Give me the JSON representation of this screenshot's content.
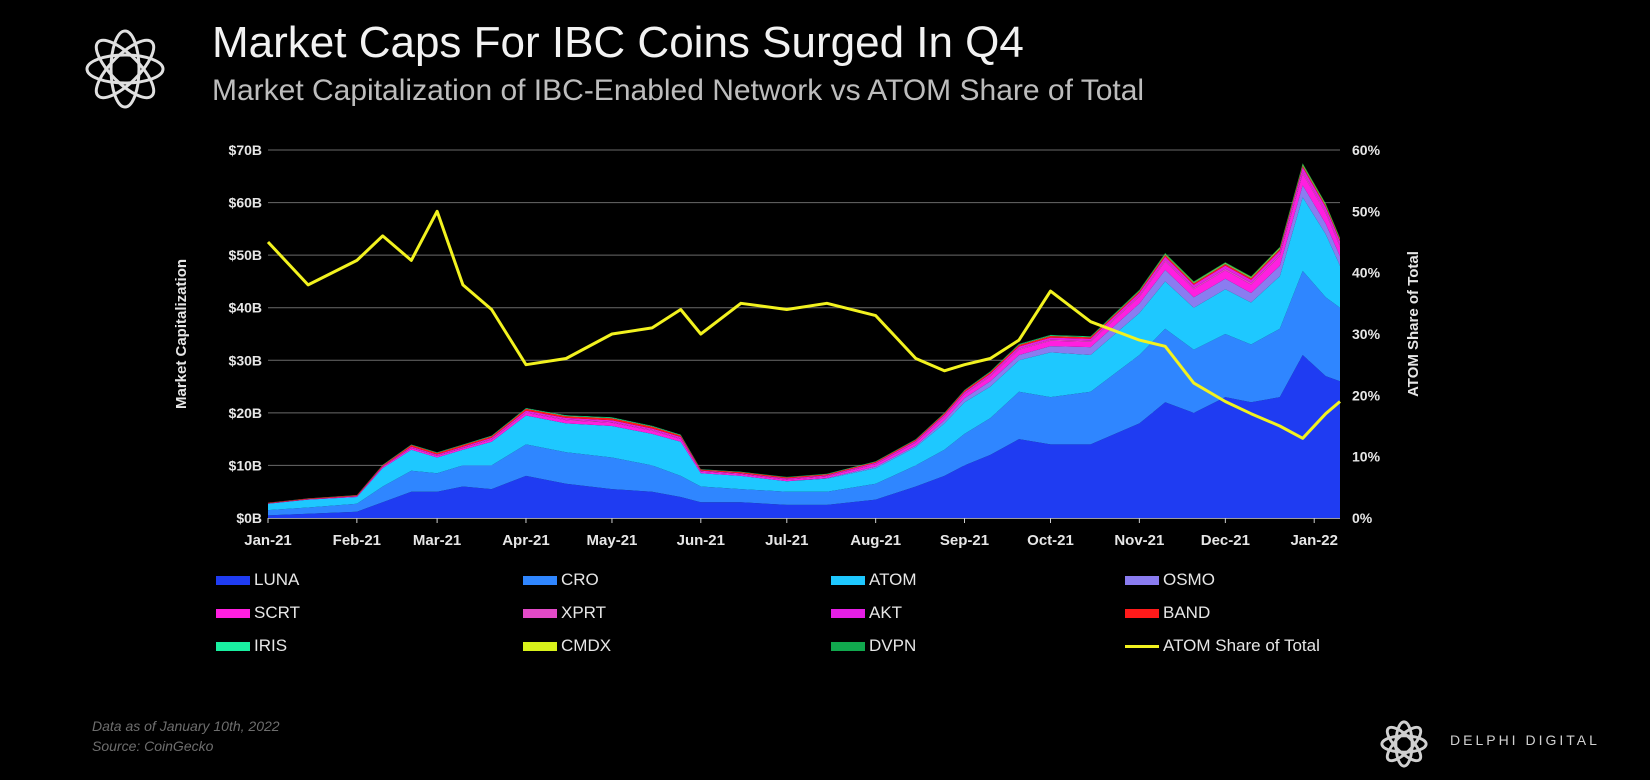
{
  "header": {
    "title": "Market Caps For IBC Coins Surged In Q4",
    "subtitle": "Market Capitalization of IBC-Enabled Network vs ATOM Share of Total"
  },
  "footer": {
    "note_date": "Data as of January 10th, 2022",
    "note_source": "Source: CoinGecko",
    "brand": "DELPHI DIGITAL"
  },
  "legend": {
    "items": [
      {
        "label": "LUNA",
        "color": "#1f3cf2",
        "kind": "area"
      },
      {
        "label": "CRO",
        "color": "#2f86ff",
        "kind": "area"
      },
      {
        "label": "ATOM",
        "color": "#1ec8ff",
        "kind": "area"
      },
      {
        "label": "OSMO",
        "color": "#8a7cf0",
        "kind": "area"
      },
      {
        "label": "SCRT",
        "color": "#ff1fe0",
        "kind": "area"
      },
      {
        "label": "XPRT",
        "color": "#e24ac7",
        "kind": "area"
      },
      {
        "label": "AKT",
        "color": "#e61fe6",
        "kind": "area"
      },
      {
        "label": "BAND",
        "color": "#ff1a1a",
        "kind": "area"
      },
      {
        "label": "IRIS",
        "color": "#19f0a0",
        "kind": "area"
      },
      {
        "label": "CMDX",
        "color": "#d8f21a",
        "kind": "area"
      },
      {
        "label": "DVPN",
        "color": "#11a84e",
        "kind": "area"
      },
      {
        "label": "ATOM Share of Total",
        "color": "#f2f21f",
        "kind": "line"
      }
    ]
  },
  "chart_data": {
    "type": "area",
    "title": "Market Caps For IBC Coins Surged In Q4",
    "subtitle": "Market Capitalization of IBC-Enabled Network vs ATOM Share of Total",
    "ylabel": "Market Capitalization",
    "y2label": "ATOM Share of Total",
    "ylim": [
      0,
      70
    ],
    "y2lim": [
      0,
      60
    ],
    "yticks": [
      "$0B",
      "$10B",
      "$20B",
      "$30B",
      "$40B",
      "$50B",
      "$60B",
      "$70B"
    ],
    "y2ticks": [
      "0%",
      "10%",
      "20%",
      "30%",
      "40%",
      "50%",
      "60%"
    ],
    "xticks": [
      "Jan-21",
      "Feb-21",
      "Mar-21",
      "Apr-21",
      "May-21",
      "Jun-21",
      "Jul-21",
      "Aug-21",
      "Sep-21",
      "Oct-21",
      "Nov-21",
      "Dec-21",
      "Jan-22"
    ],
    "grid": true,
    "legend_position": "bottom",
    "x": [
      "2021-01-01",
      "2021-01-15",
      "2021-02-01",
      "2021-02-10",
      "2021-02-20",
      "2021-03-01",
      "2021-03-10",
      "2021-03-20",
      "2021-04-01",
      "2021-04-15",
      "2021-05-01",
      "2021-05-15",
      "2021-05-25",
      "2021-06-01",
      "2021-06-15",
      "2021-07-01",
      "2021-07-15",
      "2021-08-01",
      "2021-08-15",
      "2021-08-25",
      "2021-09-01",
      "2021-09-10",
      "2021-09-20",
      "2021-10-01",
      "2021-10-15",
      "2021-11-01",
      "2021-11-10",
      "2021-11-20",
      "2021-12-01",
      "2021-12-10",
      "2021-12-20",
      "2021-12-28",
      "2022-01-05",
      "2022-01-10"
    ],
    "series": [
      {
        "name": "LUNA",
        "values": [
          0.5,
          0.8,
          1.2,
          3,
          5,
          5,
          6,
          5.5,
          8,
          6.5,
          5.5,
          5,
          4,
          3,
          3,
          2.5,
          2.5,
          3.5,
          6,
          8,
          10,
          12,
          15,
          14,
          14,
          18,
          22,
          20,
          23,
          22,
          23,
          31,
          27,
          26
        ]
      },
      {
        "name": "CRO",
        "values": [
          1,
          1.2,
          1.5,
          3,
          4,
          3.5,
          4,
          4.5,
          6,
          6,
          6,
          5,
          4,
          3,
          2.5,
          2.5,
          2.5,
          3,
          4,
          5,
          6,
          7,
          9,
          9,
          10,
          13,
          14,
          12,
          12,
          11,
          13,
          16,
          15,
          14
        ]
      },
      {
        "name": "ATOM",
        "values": [
          1.2,
          1.5,
          1.3,
          3.5,
          4,
          3,
          3,
          4.5,
          5.5,
          5.5,
          6,
          6,
          6.5,
          2.5,
          2.5,
          2,
          2.5,
          3,
          3.5,
          5,
          6,
          6,
          6,
          8.5,
          7,
          8,
          9,
          8,
          8.5,
          8,
          10,
          14,
          12,
          8
        ]
      },
      {
        "name": "OSMO",
        "values": [
          0,
          0,
          0,
          0,
          0,
          0,
          0,
          0,
          0,
          0,
          0,
          0,
          0,
          0,
          0,
          0,
          0.1,
          0.3,
          0.3,
          0.6,
          0.8,
          1,
          1,
          1.2,
          1.5,
          1.8,
          2.2,
          2,
          2,
          1.8,
          2,
          2.3,
          2,
          1.8
        ]
      },
      {
        "name": "SCRT",
        "values": [
          0.05,
          0.05,
          0.1,
          0.2,
          0.3,
          0.3,
          0.3,
          0.4,
          0.5,
          0.6,
          0.6,
          0.6,
          0.5,
          0.3,
          0.3,
          0.3,
          0.3,
          0.4,
          0.5,
          0.6,
          0.7,
          0.9,
          1,
          1,
          1,
          1.3,
          1.6,
          1.5,
          1.6,
          1.6,
          1.8,
          2.2,
          2,
          1.8
        ]
      },
      {
        "name": "XPRT",
        "values": [
          0.02,
          0.02,
          0.03,
          0.05,
          0.08,
          0.08,
          0.08,
          0.1,
          0.12,
          0.14,
          0.14,
          0.13,
          0.12,
          0.08,
          0.08,
          0.08,
          0.08,
          0.1,
          0.12,
          0.14,
          0.15,
          0.2,
          0.22,
          0.22,
          0.2,
          0.25,
          0.3,
          0.3,
          0.32,
          0.33,
          0.35,
          0.4,
          0.38,
          0.35
        ]
      },
      {
        "name": "AKT",
        "values": [
          0.02,
          0.03,
          0.05,
          0.1,
          0.2,
          0.2,
          0.2,
          0.25,
          0.3,
          0.3,
          0.35,
          0.3,
          0.3,
          0.15,
          0.15,
          0.15,
          0.15,
          0.2,
          0.25,
          0.3,
          0.3,
          0.35,
          0.4,
          0.4,
          0.4,
          0.5,
          0.6,
          0.55,
          0.6,
          0.6,
          0.7,
          0.8,
          0.75,
          0.7
        ]
      },
      {
        "name": "BAND",
        "values": [
          0.1,
          0.1,
          0.15,
          0.2,
          0.3,
          0.3,
          0.3,
          0.3,
          0.35,
          0.35,
          0.4,
          0.35,
          0.3,
          0.2,
          0.2,
          0.2,
          0.2,
          0.2,
          0.22,
          0.25,
          0.28,
          0.3,
          0.3,
          0.3,
          0.28,
          0.3,
          0.35,
          0.32,
          0.3,
          0.28,
          0.3,
          0.32,
          0.3,
          0.28
        ]
      },
      {
        "name": "IRIS",
        "values": [
          0.02,
          0.02,
          0.03,
          0.05,
          0.08,
          0.08,
          0.08,
          0.08,
          0.1,
          0.1,
          0.1,
          0.1,
          0.1,
          0.05,
          0.05,
          0.05,
          0.05,
          0.06,
          0.07,
          0.08,
          0.08,
          0.09,
          0.1,
          0.1,
          0.1,
          0.1,
          0.12,
          0.1,
          0.1,
          0.1,
          0.11,
          0.12,
          0.11,
          0.1
        ]
      },
      {
        "name": "CMDX",
        "values": [
          0,
          0,
          0,
          0,
          0,
          0,
          0,
          0,
          0,
          0,
          0,
          0,
          0,
          0,
          0,
          0,
          0,
          0,
          0,
          0,
          0,
          0,
          0,
          0,
          0,
          0.05,
          0.08,
          0.1,
          0.1,
          0.12,
          0.15,
          0.15,
          0.14,
          0.13
        ]
      },
      {
        "name": "DVPN",
        "values": [
          0.01,
          0.01,
          0.01,
          0.02,
          0.03,
          0.03,
          0.03,
          0.04,
          0.05,
          0.05,
          0.06,
          0.05,
          0.05,
          0.03,
          0.03,
          0.03,
          0.03,
          0.04,
          0.05,
          0.06,
          0.06,
          0.08,
          0.1,
          0.1,
          0.1,
          0.12,
          0.15,
          0.14,
          0.14,
          0.13,
          0.15,
          0.18,
          0.17,
          0.16
        ]
      },
      {
        "name": "ATOM Share of Total",
        "axis": "right",
        "values": [
          45,
          38,
          42,
          46,
          42,
          50,
          38,
          34,
          25,
          26,
          30,
          31,
          34,
          30,
          35,
          34,
          35,
          33,
          26,
          24,
          25,
          26,
          29,
          37,
          32,
          29,
          28,
          22,
          19,
          17,
          15,
          13,
          17,
          19
        ]
      }
    ]
  }
}
